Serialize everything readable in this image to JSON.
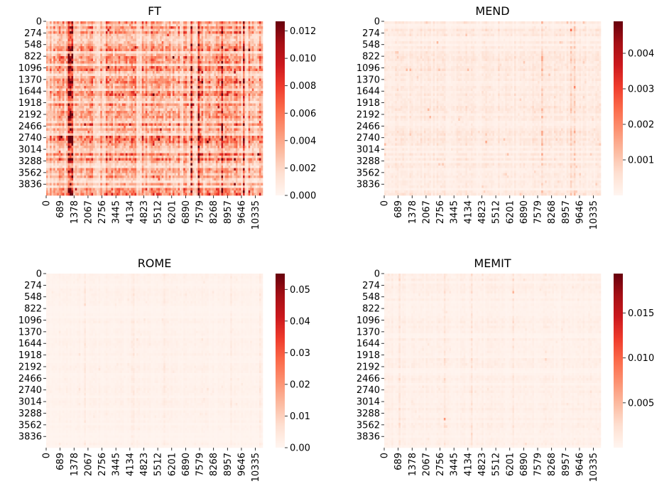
{
  "chart_data": [
    {
      "type": "heatmap",
      "title": "FT",
      "y_ticks": [
        "0",
        "274",
        "548",
        "822",
        "1096",
        "1370",
        "1644",
        "1918",
        "2192",
        "2466",
        "2740",
        "3014",
        "3288",
        "3562",
        "3836"
      ],
      "x_ticks": [
        "0",
        "689",
        "1378",
        "2067",
        "2756",
        "3445",
        "4134",
        "4823",
        "5512",
        "6201",
        "6890",
        "7579",
        "8268",
        "8957",
        "9646",
        "10335"
      ],
      "y_range": [
        0,
        4100
      ],
      "x_range": [
        0,
        10700
      ],
      "colorbar_ticks": [
        "0.000",
        "0.002",
        "0.004",
        "0.006",
        "0.008",
        "0.010",
        "0.012"
      ],
      "colorbar_range": [
        0,
        0.0127
      ],
      "colormap": "Reds",
      "low_color": "#fff5f0",
      "high_color": "#67000d",
      "intensity": 0.3
    },
    {
      "type": "heatmap",
      "title": "MEND",
      "y_ticks": [
        "0",
        "274",
        "548",
        "822",
        "1096",
        "1370",
        "1644",
        "1918",
        "2192",
        "2466",
        "2740",
        "3014",
        "3288",
        "3562",
        "3836"
      ],
      "x_ticks": [
        "0",
        "689",
        "1378",
        "2067",
        "2756",
        "3445",
        "4134",
        "4823",
        "5512",
        "6201",
        "6890",
        "7579",
        "8268",
        "8957",
        "9646",
        "10335"
      ],
      "y_range": [
        0,
        4100
      ],
      "x_range": [
        0,
        10700
      ],
      "colorbar_ticks": [
        "0.001",
        "0.002",
        "0.003",
        "0.004"
      ],
      "colorbar_range": [
        0,
        0.0049
      ],
      "colormap": "Reds",
      "low_color": "#fff5f0",
      "high_color": "#67000d",
      "intensity": 0.06
    },
    {
      "type": "heatmap",
      "title": "ROME",
      "y_ticks": [
        "0",
        "274",
        "548",
        "822",
        "1096",
        "1370",
        "1644",
        "1918",
        "2192",
        "2466",
        "2740",
        "3014",
        "3288",
        "3562",
        "3836"
      ],
      "x_ticks": [
        "0",
        "689",
        "1378",
        "2067",
        "2756",
        "3445",
        "4134",
        "4823",
        "5512",
        "6201",
        "6890",
        "7579",
        "8268",
        "8957",
        "9646",
        "10335"
      ],
      "y_range": [
        0,
        4100
      ],
      "x_range": [
        0,
        10700
      ],
      "colorbar_ticks": [
        "0.00",
        "0.01",
        "0.02",
        "0.03",
        "0.04",
        "0.05"
      ],
      "colorbar_range": [
        0,
        0.055
      ],
      "colormap": "Reds",
      "low_color": "#fff5f0",
      "high_color": "#67000d",
      "intensity": 0.02
    },
    {
      "type": "heatmap",
      "title": "MEMIT",
      "y_ticks": [
        "0",
        "274",
        "548",
        "822",
        "1096",
        "1370",
        "1644",
        "1918",
        "2192",
        "2466",
        "2740",
        "3014",
        "3288",
        "3562",
        "3836"
      ],
      "x_ticks": [
        "0",
        "689",
        "1378",
        "2067",
        "2756",
        "3445",
        "4134",
        "4823",
        "5512",
        "6201",
        "6890",
        "7579",
        "8268",
        "8957",
        "9646",
        "10335"
      ],
      "y_range": [
        0,
        4100
      ],
      "x_range": [
        0,
        10700
      ],
      "colorbar_ticks": [
        "0.005",
        "0.010",
        "0.015"
      ],
      "colorbar_range": [
        0,
        0.0194
      ],
      "colormap": "Reds",
      "low_color": "#fff5f0",
      "high_color": "#67000d",
      "intensity": 0.03
    }
  ]
}
